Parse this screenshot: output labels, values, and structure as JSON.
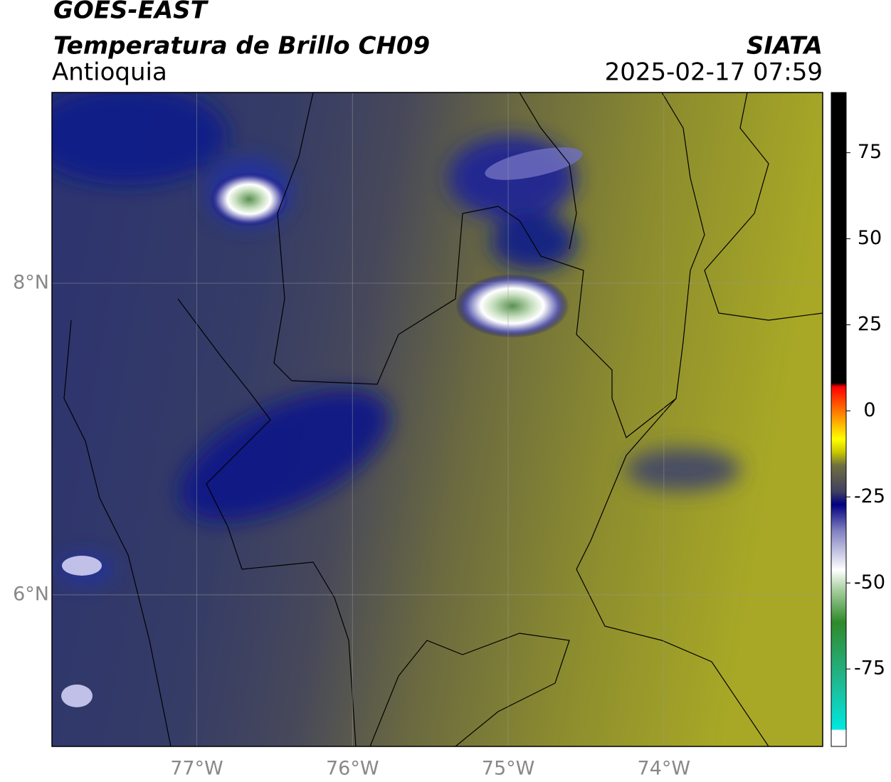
{
  "header": {
    "title": "GOES-EAST",
    "subtitle": "Temperatura de Brillo CH09",
    "region": "Antioquia",
    "source": "SIATA",
    "datetime": "2025-02-17 07:59"
  },
  "map": {
    "xlim": [
      -77.93,
      -72.98
    ],
    "ylim": [
      5.027,
      9.224
    ],
    "xticks": [
      {
        "value": -77,
        "label": "77°W"
      },
      {
        "value": -76,
        "label": "76°W"
      },
      {
        "value": -75,
        "label": "75°W"
      },
      {
        "value": -74,
        "label": "74°W"
      }
    ],
    "yticks": [
      {
        "value": 8,
        "label": "8°N"
      },
      {
        "value": 6,
        "label": "6°N"
      }
    ]
  },
  "colorbar": {
    "lim": [
      -97.5,
      92.5
    ],
    "ticks": [
      75,
      50,
      25,
      0,
      -25,
      -50,
      -75
    ]
  }
}
